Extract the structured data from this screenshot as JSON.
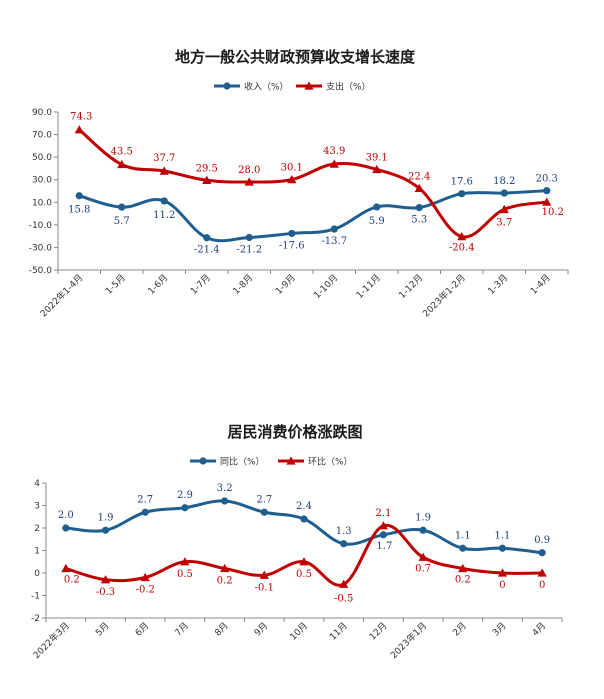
{
  "colors": {
    "blue": "#1f5f8f",
    "red": "#c00000",
    "blueLabel": "#1f3f7f",
    "redLabel": "#c00000"
  },
  "chart_data": [
    {
      "type": "line",
      "title": "地方一般公共财政预算收支增长速度",
      "categories": [
        "2022年1-4月",
        "1-5月",
        "1-6月",
        "1-7月",
        "1-8月",
        "1-9月",
        "1-10月",
        "1-11月",
        "1-12月",
        "2023年1-2月",
        "1-3月",
        "1-4月"
      ],
      "yticks": [
        "90.0",
        "70.0",
        "50.0",
        "30.0",
        "10.0",
        "-10.0",
        "-30.0",
        "-50.0"
      ],
      "ylim": [
        -50,
        90
      ],
      "legend": "top-center",
      "grid": false,
      "series": [
        {
          "name": "收入（%）",
          "color": "#1f5f8f",
          "marker": "circle",
          "values": [
            15.8,
            5.7,
            11.2,
            -21.4,
            -21.2,
            -17.6,
            -13.7,
            5.9,
            5.3,
            17.6,
            18.2,
            20.3
          ],
          "labels": [
            "15.8",
            "5.7",
            "11.2",
            "-21.4",
            "-21.2",
            "-17.6",
            "-13.7",
            "5.9",
            "5.3",
            "17.6",
            "18.2",
            "20.3"
          ]
        },
        {
          "name": "支出（%）",
          "color": "#c00000",
          "marker": "triangle",
          "values": [
            74.3,
            43.5,
            37.7,
            29.5,
            28.0,
            30.1,
            43.9,
            39.1,
            22.4,
            -20.4,
            3.7,
            10.2
          ],
          "labels": [
            "74.3",
            "43.5",
            "37.7",
            "29.5",
            "28.0",
            "30.1",
            "43.9",
            "39.1",
            "22.4",
            "-20.4",
            "3.7",
            "10.2"
          ]
        }
      ]
    },
    {
      "type": "line",
      "title": "居民消费价格涨跌图",
      "categories": [
        "2022年3月",
        "5月",
        "6月",
        "7月",
        "8月",
        "9月",
        "10月",
        "11月",
        "12月",
        "2023年1月",
        "2月",
        "3月",
        "4月"
      ],
      "yticks": [
        "4",
        "3",
        "2",
        "1",
        "0",
        "-1",
        "-2"
      ],
      "ylim": [
        -2,
        4
      ],
      "legend": "top-center",
      "grid": false,
      "series": [
        {
          "name": "同比（%）",
          "color": "#1f5f8f",
          "marker": "circle",
          "values": [
            2.0,
            1.9,
            2.7,
            2.9,
            3.2,
            2.7,
            2.4,
            1.3,
            1.7,
            1.9,
            1.1,
            1.1,
            0.9
          ],
          "labels": [
            "2.0",
            "1.9",
            "2.7",
            "2.9",
            "3.2",
            "2.7",
            "2.4",
            "1.3",
            "1.7",
            "1.9",
            "1.1",
            "1.1",
            "0.9"
          ]
        },
        {
          "name": "环比（%）",
          "color": "#c00000",
          "marker": "triangle",
          "values": [
            0.2,
            -0.3,
            -0.2,
            0.5,
            0.2,
            -0.1,
            0.5,
            -0.5,
            2.1,
            0.7,
            0.2,
            0,
            0
          ],
          "labels": [
            "0.2",
            "-0.3",
            "-0.2",
            "0.5",
            "0.2",
            "-0.1",
            "0.5",
            "-0.5",
            "2.1",
            "0.7",
            "0.2",
            "0",
            "0"
          ]
        }
      ]
    }
  ]
}
